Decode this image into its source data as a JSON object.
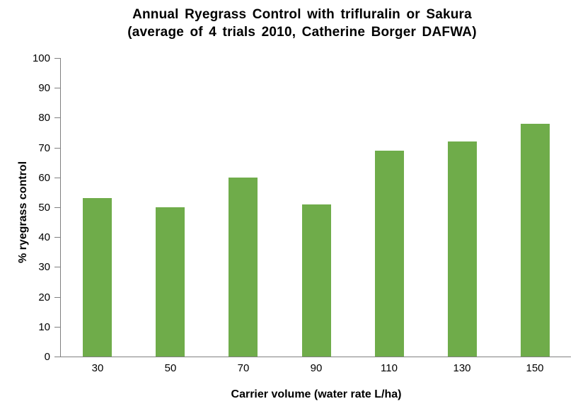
{
  "chart_data": {
    "type": "bar",
    "title_line1": "Annual Ryegrass Control with trifluralin or Sakura",
    "title_line2": "(average of 4 trials 2010, Catherine Borger DAFWA)",
    "categories": [
      "30",
      "50",
      "70",
      "90",
      "110",
      "130",
      "150"
    ],
    "values": [
      53,
      50,
      60,
      51,
      69,
      72,
      78
    ],
    "xlabel": "Carrier volume (water rate L/ha)",
    "ylabel": "% ryegrass control",
    "ylim": [
      0,
      100
    ],
    "ytick_step": 10,
    "ytick_labels": [
      "0",
      "10",
      "20",
      "30",
      "40",
      "50",
      "60",
      "70",
      "80",
      "90",
      "100"
    ],
    "grid": false,
    "legend": "none",
    "bar_color": "#6FAC4A",
    "axis_color": "#808080",
    "text_color": "#000000",
    "background_color": "#FFFFFF"
  }
}
